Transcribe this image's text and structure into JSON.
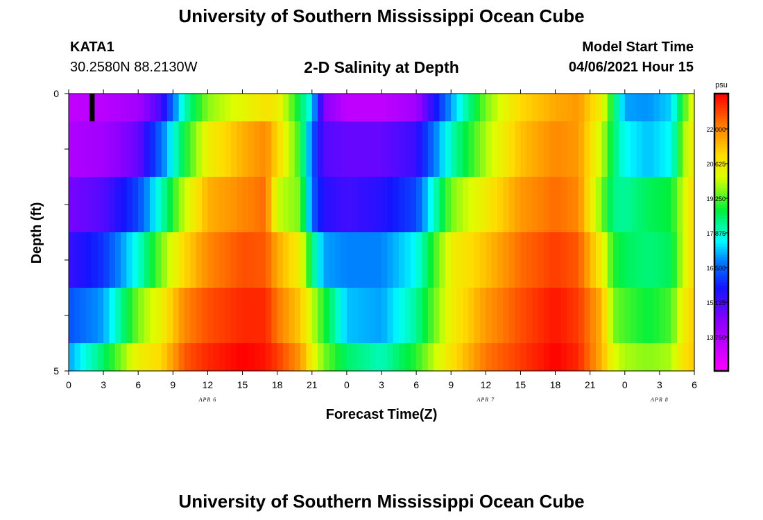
{
  "header": {
    "main_title": "University of Southern Mississippi Ocean Cube",
    "station_name": "KATA1",
    "station_coords": "30.2580N  88.2130W",
    "chart_heading": "2-D Salinity at Depth",
    "model_start_label": "Model Start Time",
    "model_start_value": "04/06/2021 Hour 15",
    "footer_title": "University of Southern Mississippi Ocean Cube"
  },
  "chart_data": {
    "type": "heatmap",
    "title": "2-D Salinity at Depth",
    "xlabel": "Forecast Time(Z)",
    "ylabel": "Depth (ft)",
    "x_tick_labels": [
      "0",
      "3",
      "6",
      "9",
      "12",
      "15",
      "18",
      "21",
      "0",
      "3",
      "6",
      "9",
      "12",
      "15",
      "18",
      "21",
      "0",
      "3",
      "6"
    ],
    "date_labels": [
      {
        "text": "APR 6",
        "hour": 12
      },
      {
        "text": "APR 7",
        "hour": 36
      },
      {
        "text": "APR 8",
        "hour": 51
      }
    ],
    "xlim": [
      0,
      54
    ],
    "y_tick_labels": [
      "0",
      "5"
    ],
    "ylim": [
      0,
      5
    ],
    "depth_levels": 5,
    "colorbar": {
      "unit": "psu",
      "min": 12.4,
      "max": 23.4,
      "tick_values": [
        13.75,
        15.125,
        16.5,
        17.875,
        19.25,
        20.625,
        22.0
      ],
      "tick_labels": [
        "13.750",
        "15.125",
        "16.500",
        "17.875",
        "19.250",
        "20.625",
        "22.000"
      ]
    },
    "current_time_marker_hour": 2,
    "salinity_keyframes": [
      {
        "hour": 0,
        "values": [
          13.5,
          13.8,
          14.6,
          15.3,
          16.3,
          17.0
        ]
      },
      {
        "hour": 3,
        "values": [
          13.6,
          14.0,
          15.0,
          16.0,
          17.0,
          18.5
        ]
      },
      {
        "hour": 6,
        "values": [
          14.0,
          14.8,
          16.2,
          17.8,
          19.5,
          20.5
        ]
      },
      {
        "hour": 8,
        "values": [
          15.2,
          16.6,
          18.0,
          19.5,
          20.5,
          21.0
        ]
      },
      {
        "hour": 10,
        "values": [
          18.0,
          18.8,
          20.0,
          21.0,
          22.0,
          22.5
        ]
      },
      {
        "hour": 12,
        "values": [
          19.6,
          20.5,
          21.5,
          22.0,
          22.6,
          23.0
        ]
      },
      {
        "hour": 15,
        "values": [
          20.3,
          21.5,
          22.0,
          22.6,
          23.0,
          23.4
        ]
      },
      {
        "hour": 17,
        "values": [
          20.8,
          22.0,
          22.3,
          22.5,
          23.0,
          23.2
        ]
      },
      {
        "hour": 18,
        "values": [
          20.6,
          21.0,
          20.0,
          21.6,
          22.2,
          22.8
        ]
      },
      {
        "hour": 20,
        "values": [
          18.6,
          19.0,
          19.5,
          20.5,
          21.2,
          21.8
        ]
      },
      {
        "hour": 21,
        "values": [
          17.5,
          16.5,
          16.5,
          18.5,
          20.0,
          20.5
        ]
      },
      {
        "hour": 22,
        "values": [
          14.5,
          15.0,
          15.5,
          17.0,
          19.0,
          19.5
        ]
      },
      {
        "hour": 24,
        "values": [
          13.5,
          14.8,
          15.2,
          16.8,
          17.2,
          18.5
        ]
      },
      {
        "hour": 27,
        "values": [
          13.5,
          14.8,
          15.5,
          16.8,
          17.0,
          18.0
        ]
      },
      {
        "hour": 30,
        "values": [
          14.0,
          15.3,
          16.2,
          17.6,
          18.2,
          19.0
        ]
      },
      {
        "hour": 33,
        "values": [
          17.0,
          18.0,
          19.5,
          20.5,
          20.5,
          20.8
        ]
      },
      {
        "hour": 36,
        "values": [
          19.5,
          19.8,
          20.6,
          21.3,
          21.8,
          22.2
        ]
      },
      {
        "hour": 39,
        "values": [
          21.0,
          21.3,
          21.8,
          22.3,
          22.6,
          22.8
        ]
      },
      {
        "hour": 42,
        "values": [
          21.6,
          22.0,
          22.3,
          22.8,
          23.2,
          23.4
        ]
      },
      {
        "hour": 44,
        "values": [
          21.8,
          21.8,
          22.0,
          22.5,
          22.8,
          23.0
        ]
      },
      {
        "hour": 46,
        "values": [
          20.5,
          20.0,
          19.5,
          20.5,
          21.5,
          21.5
        ]
      },
      {
        "hour": 47,
        "values": [
          18.6,
          18.5,
          18.3,
          19.0,
          19.5,
          20.2
        ]
      },
      {
        "hour": 48,
        "values": [
          17.0,
          17.6,
          18.2,
          18.6,
          19.2,
          19.8
        ]
      },
      {
        "hour": 50,
        "values": [
          16.9,
          17.2,
          18.6,
          18.4,
          18.8,
          19.6
        ]
      },
      {
        "hour": 52,
        "values": [
          17.3,
          17.6,
          18.8,
          18.6,
          19.2,
          19.8
        ]
      },
      {
        "hour": 53,
        "values": [
          19.0,
          19.6,
          20.0,
          20.0,
          20.5,
          20.8
        ]
      },
      {
        "hour": 54,
        "values": [
          20.5,
          20.8,
          21.0,
          21.0,
          21.2,
          21.2
        ]
      }
    ]
  }
}
